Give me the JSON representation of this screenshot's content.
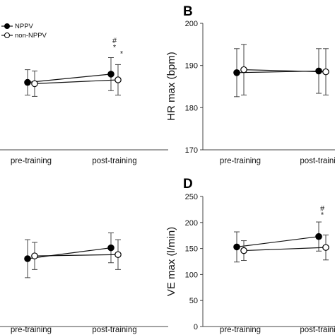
{
  "legend": {
    "entries": [
      {
        "name": "NPPV",
        "marker": "filled"
      },
      {
        "name": "non-NPPV",
        "marker": "open"
      }
    ]
  },
  "chart_data": [
    {
      "panel": "",
      "type": "line",
      "categories": [
        "pre-training",
        "post-training"
      ],
      "ylabel": "",
      "ylim": [
        0,
        10
      ],
      "yticks": [],
      "series": [
        {
          "name": "NPPV",
          "values": [
            5.3,
            5.95
          ],
          "err": [
            1.0,
            1.3
          ]
        },
        {
          "name": "non-NPPV",
          "values": [
            5.2,
            5.5
          ],
          "err": [
            1.0,
            1.2
          ]
        }
      ],
      "annotations": [
        {
          "text": "#",
          "category": 1,
          "y": 8.4
        },
        {
          "text": "*",
          "category": 1,
          "y": 7.85
        },
        {
          "text": "*",
          "category": 1,
          "series": 1,
          "y": 7.35
        }
      ]
    },
    {
      "panel": "B",
      "type": "line",
      "categories": [
        "pre-training",
        "post-training"
      ],
      "ylabel": "HR max (bpm)",
      "ylim": [
        170,
        200
      ],
      "yticks": [
        170,
        180,
        190,
        200
      ],
      "series": [
        {
          "name": "NPPV",
          "values": [
            188.3,
            188.7
          ],
          "err": [
            5.7,
            5.3
          ]
        },
        {
          "name": "non-NPPV",
          "values": [
            189.0,
            188.5
          ],
          "err": [
            6.0,
            5.5
          ]
        }
      ],
      "annotations": []
    },
    {
      "panel": "",
      "type": "line",
      "categories": [
        "pre-training",
        "post-training"
      ],
      "ylabel": "",
      "ylim": [
        0,
        10
      ],
      "yticks": [],
      "series": [
        {
          "name": "NPPV",
          "values": [
            5.0,
            5.8
          ],
          "err": [
            1.4,
            1.1
          ]
        },
        {
          "name": "non-NPPV",
          "values": [
            5.2,
            5.3
          ],
          "err": [
            1.0,
            1.1
          ]
        }
      ],
      "annotations": []
    },
    {
      "panel": "D",
      "type": "line",
      "categories": [
        "pre-training",
        "post-training"
      ],
      "ylabel": "VE max (l/min)",
      "ylim": [
        0,
        250
      ],
      "yticks": [
        0,
        50,
        100,
        150,
        200,
        250
      ],
      "series": [
        {
          "name": "NPPV",
          "values": [
            153,
            173
          ],
          "err": [
            29,
            28
          ]
        },
        {
          "name": "non-NPPV",
          "values": [
            146,
            152
          ],
          "err": [
            19,
            24
          ]
        }
      ],
      "annotations": [
        {
          "text": "#",
          "category": 1,
          "y": 222
        },
        {
          "text": "*",
          "category": 1,
          "y": 210
        }
      ]
    }
  ]
}
